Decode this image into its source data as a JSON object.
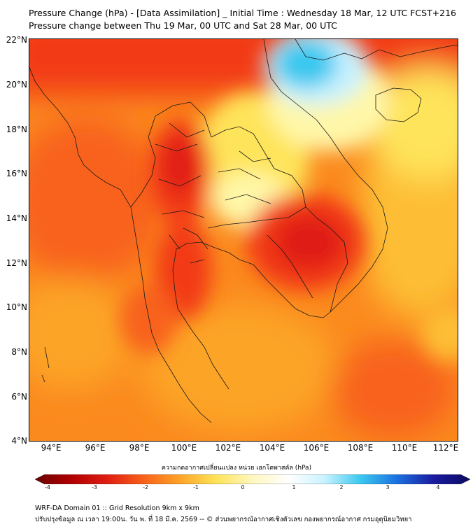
{
  "header": {
    "title_line1": "Pressure Change (hPa) - [Data Assimilation] _ Initial Time : Wednesday 18 Mar, 12 UTC FCST+216",
    "title_line2": "Pressure change between Thu 19 Mar, 00 UTC and Sat 28 Mar, 00 UTC"
  },
  "map": {
    "lat_labels": [
      "22°N",
      "20°N",
      "18°N",
      "16°N",
      "14°N",
      "12°N",
      "10°N",
      "8°N",
      "6°N",
      "4°N"
    ],
    "lon_labels": [
      "94°E",
      "96°E",
      "98°E",
      "100°E",
      "102°E",
      "104°E",
      "106°E",
      "108°E",
      "110°E",
      "112°E"
    ],
    "colors": {
      "deep_red": "#e01e12",
      "red": "#f23a16",
      "red_orange": "#f8621a",
      "orange": "#fb8a1e",
      "light_orange": "#fca428",
      "amber": "#fdbe36",
      "yellow": "#fee45a",
      "pale_yellow": "#fff7a8",
      "pale_cyan": "#c8f2ff",
      "cyan": "#39c7ef",
      "land_outline": "#1a1a1a"
    }
  },
  "colorbar": {
    "caption": "ความกดอากาศเปลี่ยนแปลง หน่วย เฮกโตพาสคัล (hPa)",
    "ticks": [
      "-4",
      "-3",
      "-2",
      "-1",
      "0",
      "1",
      "2",
      "3",
      "4"
    ],
    "range": [
      -4,
      4
    ],
    "stops": [
      "#6b0000",
      "#b00000",
      "#e01e12",
      "#f8621a",
      "#fca428",
      "#fee45a",
      "#fff7c0",
      "#ffffff",
      "#c8f2ff",
      "#39c7ef",
      "#1b6fe0",
      "#1a1aa0",
      "#0b0b60"
    ]
  },
  "footer": {
    "line1": "WRF-DA Domain 01 :: Grid Resolution 9km x 9km",
    "line2": "ปรับปรุงข้อมูล ณ เวลา 19:00น. วัน พ. ที่ 18 มี.ค. 2569 -- © ส่วนพยากรณ์อากาศเชิงตัวเลข กองพยากรณ์อากาศ กรมอุตุนิยมวิทยา"
  }
}
